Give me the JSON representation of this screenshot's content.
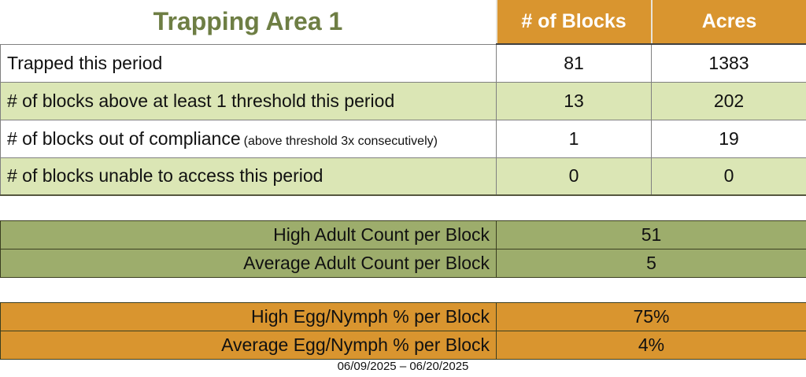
{
  "title": "Trapping Area 1",
  "main_table": {
    "columns": [
      "# of Blocks",
      "Acres"
    ],
    "rows": [
      {
        "label": "Trapped this period",
        "blocks": "81",
        "acres": "1383"
      },
      {
        "label": "# of blocks above at least 1 threshold this period",
        "blocks": "13",
        "acres": "202"
      },
      {
        "label": "# of blocks out of compliance",
        "label_note": "(above threshold 3x consecutively)",
        "blocks": "1",
        "acres": "19"
      },
      {
        "label": "# of blocks unable to access this period",
        "blocks": "0",
        "acres": "0"
      }
    ]
  },
  "adult_counts": {
    "rows": [
      {
        "label": "High Adult Count per Block",
        "value": "51"
      },
      {
        "label": "Average Adult Count per Block",
        "value": "5"
      }
    ]
  },
  "egg_nymph": {
    "rows": [
      {
        "label": "High Egg/Nymph % per Block",
        "value": "75%"
      },
      {
        "label": "Average Egg/Nymph % per Block",
        "value": "4%"
      }
    ]
  },
  "footer": {
    "date_range": "06/09/2025 – 06/20/2025"
  },
  "colors": {
    "accent_orange": "#D9952F",
    "row_light_green": "#DBE6B5",
    "band_olive_green": "#9DAD6C",
    "title_green": "#6E7E44",
    "header_text": "#FFFFFF"
  }
}
